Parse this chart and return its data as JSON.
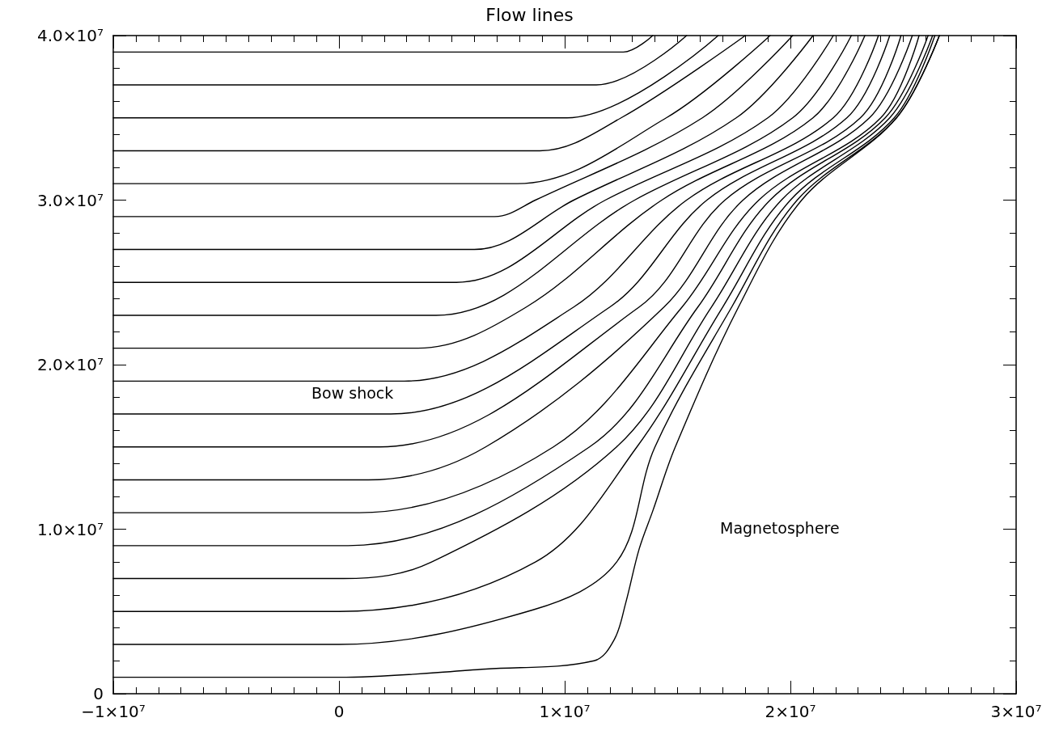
{
  "chart_data": {
    "type": "line",
    "title": "Flow lines",
    "xlim": [
      -10000000.0,
      30000000.0
    ],
    "ylim": [
      0,
      40000000.0
    ],
    "xticks": [
      {
        "value": -10000000.0,
        "label": "−1×10⁷"
      },
      0,
      {
        "value": 10000000.0,
        "label": "1×10⁷"
      },
      {
        "value": 20000000.0,
        "label": "2×10⁷"
      },
      {
        "value": 30000000.0,
        "label": "3×10⁷"
      }
    ],
    "yticks": [
      0,
      {
        "value": 10000000.0,
        "label": "1.0×10⁷"
      },
      {
        "value": 20000000.0,
        "label": "2.0×10⁷"
      },
      {
        "value": 30000000.0,
        "label": "3.0×10⁷"
      },
      {
        "value": 40000000.0,
        "label": "4.0×10⁷"
      }
    ],
    "grid": false,
    "marker": "none",
    "line_style": "solid",
    "annotations": [
      "Bow shock",
      "Magnetosphere"
    ],
    "series": [
      {
        "color": "#000000",
        "x": [
          -10000000.0,
          12600000.0,
          13900000.0
        ],
        "values": [
          39000000.0,
          39000000.0,
          40000000.0
        ]
      },
      {
        "color": "#000000",
        "x": [
          -10000000.0,
          11400000.0,
          15400000.0
        ],
        "values": [
          37000000.0,
          37000000.0,
          40000000.0
        ]
      },
      {
        "color": "#000000",
        "x": [
          -10000000.0,
          10100000.0,
          16800000.0
        ],
        "values": [
          35000000.0,
          35000000.0,
          40000000.0
        ]
      },
      {
        "color": "#000000",
        "x": [
          -10000000.0,
          8900000.0,
          12500000.0,
          18000000.0
        ],
        "values": [
          33000000.0,
          33000000.0,
          35000000.0,
          40000000.0
        ]
      },
      {
        "color": "#000000",
        "x": [
          -10000000.0,
          7900000.0,
          14500000.0,
          19100000.0
        ],
        "values": [
          31000000.0,
          31000000.0,
          35000000.0,
          40000000.0
        ]
      },
      {
        "color": "#000000",
        "x": [
          -10000000.0,
          6900000.0,
          8700000.0,
          16100000.0,
          20100000.0
        ],
        "values": [
          29000000.0,
          29000000.0,
          30000000.0,
          35000000.0,
          40000000.0
        ]
      },
      {
        "color": "#000000",
        "x": [
          -10000000.0,
          6000000.0,
          10400000.0,
          17600000.0,
          21000000.0
        ],
        "values": [
          27000000.0,
          27000000.0,
          30000000.0,
          35000000.0,
          40000000.0
        ]
      },
      {
        "color": "#000000",
        "x": [
          -10000000.0,
          5200000.0,
          11800000.0,
          19000000.0,
          21900000.0
        ],
        "values": [
          25000000.0,
          25000000.0,
          30000000.0,
          35000000.0,
          40000000.0
        ]
      },
      {
        "color": "#000000",
        "x": [
          -10000000.0,
          4300000.0,
          13100000.0,
          20100000.0,
          22700000.0
        ],
        "values": [
          23000000.0,
          23000000.0,
          30000000.0,
          35000000.0,
          40000000.0
        ]
      },
      {
        "color": "#000000",
        "x": [
          -10000000.0,
          3500000.0,
          8300000.0,
          14300000.0,
          21000000.0,
          23300000.0
        ],
        "values": [
          21000000.0,
          21000000.0,
          23500000.0,
          30000000.0,
          35000000.0,
          40000000.0
        ]
      },
      {
        "color": "#000000",
        "x": [
          -10000000.0,
          2900000.0,
          10400000.0,
          15400000.0,
          21900000.0,
          23900000.0
        ],
        "values": [
          19000000.0,
          19000000.0,
          23500000.0,
          30000000.0,
          35000000.0,
          40000000.0
        ]
      },
      {
        "color": "#000000",
        "x": [
          -10000000.0,
          2300000.0,
          12000000.0,
          16300000.0,
          22500000.0,
          24400000.0
        ],
        "values": [
          17000000.0,
          17000000.0,
          23500000.0,
          30000000.0,
          35000000.0,
          40000000.0
        ]
      },
      {
        "color": "#000000",
        "x": [
          -10000000.0,
          1800000.0,
          13300000.0,
          17100000.0,
          23100000.0,
          24900000.0
        ],
        "values": [
          15000000.0,
          15000000.0,
          23500000.0,
          30000000.0,
          35000000.0,
          40000000.0
        ]
      },
      {
        "color": "#000000",
        "x": [
          -10000000.0,
          1300000.0,
          6500000.0,
          14400000.0,
          17900000.0,
          23500000.0,
          25400000.0
        ],
        "values": [
          13000000.0,
          13000000.0,
          15000000.0,
          23500000.0,
          30000000.0,
          35000000.0,
          40000000.0
        ]
      },
      {
        "color": "#000000",
        "x": [
          -10000000.0,
          900000.0,
          9500000.0,
          15200000.0,
          18600000.0,
          24000000.0,
          25700000.0
        ],
        "values": [
          11000000.0,
          11000000.0,
          15000000.0,
          23500000.0,
          30000000.0,
          35000000.0,
          40000000.0
        ]
      },
      {
        "color": "#000000",
        "x": [
          -10000000.0,
          400000.0,
          11100000.0,
          15900000.0,
          19100000.0,
          24200000.0,
          26100000.0
        ],
        "values": [
          9000000.0,
          9000000.0,
          15000000.0,
          23500000.0,
          30000000.0,
          35000000.0,
          40000000.0
        ]
      },
      {
        "color": "#000000",
        "x": [
          -10000000.0,
          200000.0,
          4100000.0,
          12300000.0,
          16500000.0,
          19600000.0,
          24400000.0,
          26300000.0
        ],
        "values": [
          7000000.0,
          7000000.0,
          8000000.0,
          15000000.0,
          23500000.0,
          30000000.0,
          35000000.0,
          40000000.0
        ]
      },
      {
        "color": "#000000",
        "x": [
          -10000000.0,
          0,
          8700000.0,
          13200000.0,
          17000000.0,
          20000000.0,
          24600000.0,
          26400000.0
        ],
        "values": [
          5000000.0,
          5000000.0,
          8000000.0,
          15000000.0,
          23500000.0,
          30000000.0,
          35000000.0,
          40000000.0
        ]
      },
      {
        "color": "#000000",
        "x": [
          -10000000.0,
          0,
          8600000.0,
          12300000.0,
          14000000.0,
          17400000.0,
          20300000.0,
          24700000.0,
          26600000.0
        ],
        "values": [
          3000000.0,
          3000000.0,
          5100000.0,
          8000000.0,
          15000000.0,
          23500000.0,
          30000000.0,
          35000000.0,
          40000000.0
        ]
      },
      {
        "color": "#000000",
        "x": [
          -10000000.0,
          0,
          6500000.0,
          11300000.0,
          12200000.0,
          12700000.0,
          13300000.0,
          13900000.0,
          14900000.0,
          17700000.0,
          20500000.0,
          24700000.0,
          26600000.0
        ],
        "values": [
          1000000.0,
          1000000.0,
          1500000.0,
          2000000.0,
          3300000.0,
          5500000.0,
          8800000.0,
          11100000.0,
          15000000.0,
          23500000.0,
          30000000.0,
          35000000.0,
          40000000.0
        ]
      }
    ]
  }
}
